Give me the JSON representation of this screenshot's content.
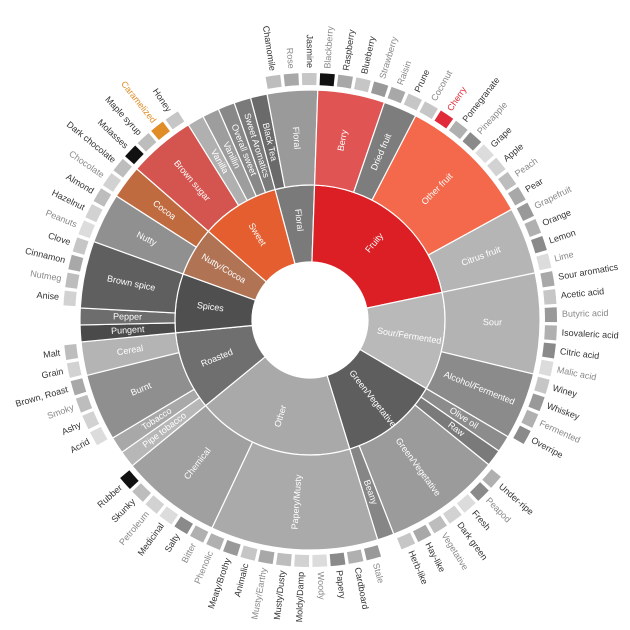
{
  "chart_data": {
    "type": "sunburst",
    "title": "",
    "colors": {
      "highlight": [
        "#dc1f25",
        "#e05454",
        "#f4694b",
        "#e45e2f",
        "#b07455",
        "#bf6a3f",
        "#d4544f"
      ],
      "leaf_label_highlight": {
        "Caramelized": "#e08c27",
        "Cherry": "#e02a3a"
      },
      "leaf_swatch_highlight": {
        "Caramelized": "#e08c27",
        "Cherry": "#e02a3a",
        "Blackberry": "#111111",
        "Molasses": "#111111",
        "Rubber": "#111111"
      }
    },
    "tree": [
      {
        "name": "Floral",
        "color": "#7a7a7a",
        "children": [
          {
            "name": "Black Tea",
            "color": "#6a6a6a",
            "leaves": []
          },
          {
            "name": "Floral",
            "color": "#9a9a9a",
            "leaves": [
              "Chamomile",
              "Rose",
              "Jasmine"
            ]
          }
        ]
      },
      {
        "name": "Fruity",
        "color": "#dc1f25",
        "children": [
          {
            "name": "Berry",
            "color": "#e05454",
            "leaves": [
              "Blackberry",
              "Raspberry",
              "Blueberry",
              "Strawberry"
            ]
          },
          {
            "name": "Dried fruit",
            "color": "#7d7d7d",
            "leaves": [
              "Raisin",
              "Prune"
            ]
          },
          {
            "name": "Other fruit",
            "color": "#f4694b",
            "leaves": [
              "Coconut",
              "Cherry",
              "Pomegranate",
              "Pineapple",
              "Grape",
              "Apple",
              "Peach",
              "Pear"
            ]
          },
          {
            "name": "Citrus fruit",
            "color": "#b5b5b5",
            "leaves": [
              "Grapefruit",
              "Orange",
              "Lemon",
              "Lime"
            ]
          }
        ]
      },
      {
        "name": "Sour/Fermented",
        "color": "#b9b9b9",
        "children": [
          {
            "name": "Sour",
            "color": "#b3b3b3",
            "leaves": [
              "Sour aromatics",
              "Acetic acid",
              "Butyric acid",
              "Isovaleric acid",
              "Citric acid",
              "Malic acid"
            ]
          },
          {
            "name": "Alcohol/Fermented",
            "color": "#8b8b8b",
            "leaves": [
              "Winey",
              "Whiskey",
              "Fermented",
              "Overripe"
            ]
          }
        ]
      },
      {
        "name": "Green/Vegetative",
        "color": "#5e5e5e",
        "children": [
          {
            "name": "Olive oil",
            "color": "#8c8c8c",
            "leaves": []
          },
          {
            "name": "Raw",
            "color": "#7a7a7a",
            "leaves": []
          },
          {
            "name": "Green/Vegetative",
            "color": "#9b9b9b",
            "leaves": [
              "Under-ripe",
              "Peapod",
              "Fresh",
              "Dark green",
              "Vegetative",
              "Hay-like",
              "Herb-like"
            ]
          },
          {
            "name": "Beany",
            "color": "#868686",
            "leaves": []
          }
        ]
      },
      {
        "name": "Other",
        "color": "#a9a9a9",
        "children": [
          {
            "name": "Papery/Musty",
            "color": "#aaaaaa",
            "leaves": [
              "Stale",
              "Cardboard",
              "Papery",
              "Woody",
              "Moldy/Damp",
              "Musty/Dusty",
              "Musty/Earthy",
              "Animalic",
              "Meaty/Brothy",
              "Phenolic"
            ]
          },
          {
            "name": "Chemical",
            "color": "#a0a0a0",
            "leaves": [
              "Bitter",
              "Salty",
              "Medicinal",
              "Petroleum",
              "Skunky",
              "Rubber"
            ]
          }
        ]
      },
      {
        "name": "Roasted",
        "color": "#6f6f6f",
        "children": [
          {
            "name": "Pipe tobacco",
            "color": "#b7b7b7",
            "leaves": []
          },
          {
            "name": "Tobacco",
            "color": "#a8a8a8",
            "leaves": []
          },
          {
            "name": "Burnt",
            "color": "#8f8f8f",
            "leaves": [
              "Acrid",
              "Ashy",
              "Smoky",
              "Brown, Roast"
            ]
          },
          {
            "name": "Cereal",
            "color": "#b4b4b4",
            "leaves": [
              "Grain",
              "Malt"
            ]
          }
        ]
      },
      {
        "name": "Spices",
        "color": "#4f4f4f",
        "children": [
          {
            "name": "Pungent",
            "color": "#4a4a4a",
            "leaves": []
          },
          {
            "name": "Pepper",
            "color": "#6d6d6d",
            "leaves": []
          },
          {
            "name": "Brown spice",
            "color": "#5f5f5f",
            "leaves": [
              "Anise",
              "Nutmeg",
              "Cinnamon",
              "Clove"
            ]
          }
        ]
      },
      {
        "name": "Nutty/Cocoa",
        "color": "#b07455",
        "children": [
          {
            "name": "Nutty",
            "color": "#909090",
            "leaves": [
              "Peanuts",
              "Hazelnut",
              "Almond"
            ]
          },
          {
            "name": "Cocoa",
            "color": "#bf6a3f",
            "leaves": [
              "Chocolate",
              "Dark chocolate"
            ]
          }
        ]
      },
      {
        "name": "Sweet",
        "color": "#e45e2f",
        "children": [
          {
            "name": "Brown sugar",
            "color": "#d4544f",
            "leaves": [
              "Molasses",
              "Maple syrup",
              "Caramelized",
              "Honey"
            ]
          },
          {
            "name": "Vanilla",
            "color": "#b0b0b0",
            "leaves": []
          },
          {
            "name": "Vanillin",
            "color": "#9d9d9d",
            "leaves": []
          },
          {
            "name": "Overall sweet",
            "color": "#888888",
            "leaves": []
          },
          {
            "name": "Sweet Aromatics",
            "color": "#7a7a7a",
            "leaves": []
          }
        ]
      }
    ]
  }
}
